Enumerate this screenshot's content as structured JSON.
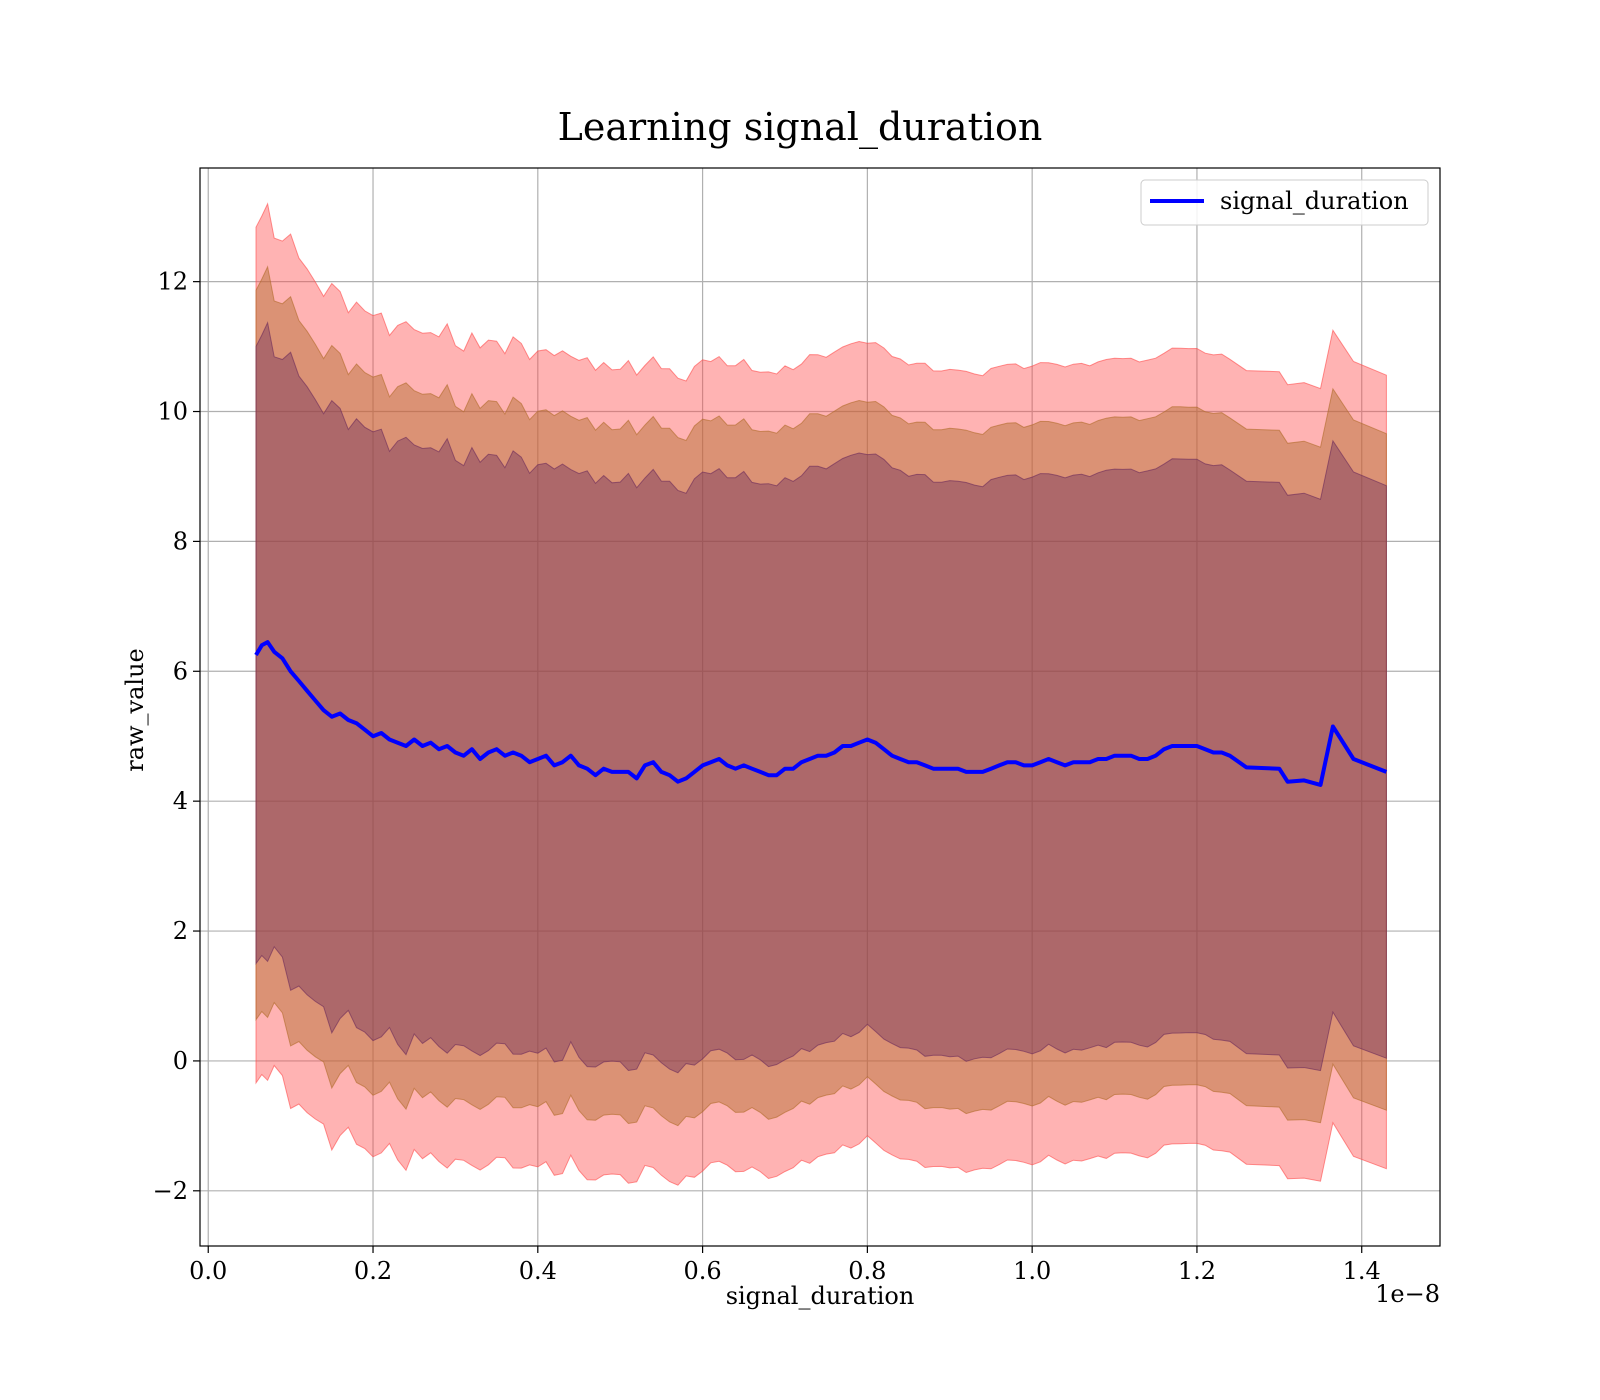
{
  "chart_data": {
    "type": "area",
    "title": "Learning signal_duration",
    "xlabel": "signal_duration",
    "ylabel": "raw_value",
    "x_offset_label": "1e−8",
    "xlim": [
      -0.01,
      1.495
    ],
    "ylim": [
      -2.85,
      13.75
    ],
    "x_ticks": [
      0.0,
      0.2,
      0.4,
      0.6,
      0.8,
      1.0,
      1.2,
      1.4
    ],
    "x_tick_labels": [
      "0.0",
      "0.2",
      "0.4",
      "0.6",
      "0.8",
      "1.0",
      "1.2",
      "1.4"
    ],
    "y_ticks": [
      -2,
      0,
      2,
      4,
      6,
      8,
      10,
      12
    ],
    "y_tick_labels": [
      "−2",
      "0",
      "2",
      "4",
      "6",
      "8",
      "10",
      "12"
    ],
    "grid": true,
    "legend_position": "top-right",
    "series": [
      {
        "name": "signal_duration",
        "color": "#0000ff",
        "x": [
          0.058,
          0.065,
          0.072,
          0.08,
          0.09,
          0.1,
          0.11,
          0.12,
          0.13,
          0.14,
          0.15,
          0.16,
          0.17,
          0.18,
          0.19,
          0.2,
          0.21,
          0.22,
          0.23,
          0.24,
          0.25,
          0.26,
          0.27,
          0.28,
          0.29,
          0.3,
          0.31,
          0.32,
          0.33,
          0.34,
          0.35,
          0.36,
          0.37,
          0.38,
          0.39,
          0.4,
          0.41,
          0.42,
          0.43,
          0.44,
          0.45,
          0.46,
          0.47,
          0.48,
          0.49,
          0.5,
          0.51,
          0.52,
          0.53,
          0.54,
          0.55,
          0.56,
          0.57,
          0.58,
          0.59,
          0.6,
          0.61,
          0.62,
          0.63,
          0.64,
          0.65,
          0.66,
          0.67,
          0.68,
          0.69,
          0.7,
          0.71,
          0.72,
          0.73,
          0.74,
          0.75,
          0.76,
          0.77,
          0.78,
          0.79,
          0.8,
          0.81,
          0.82,
          0.83,
          0.84,
          0.85,
          0.86,
          0.87,
          0.88,
          0.89,
          0.9,
          0.91,
          0.92,
          0.93,
          0.94,
          0.95,
          0.96,
          0.97,
          0.98,
          0.99,
          1.0,
          1.01,
          1.02,
          1.03,
          1.04,
          1.05,
          1.06,
          1.07,
          1.08,
          1.09,
          1.1,
          1.11,
          1.12,
          1.13,
          1.14,
          1.15,
          1.16,
          1.17,
          1.18,
          1.19,
          1.2,
          1.21,
          1.22,
          1.23,
          1.24,
          1.26,
          1.3,
          1.31,
          1.33,
          1.35,
          1.365,
          1.39,
          1.43
        ],
        "y": [
          6.25,
          6.4,
          6.45,
          6.3,
          6.2,
          6.0,
          5.85,
          5.7,
          5.55,
          5.4,
          5.3,
          5.35,
          5.25,
          5.2,
          5.1,
          5.0,
          5.05,
          4.95,
          4.9,
          4.85,
          4.95,
          4.85,
          4.9,
          4.8,
          4.85,
          4.75,
          4.7,
          4.8,
          4.65,
          4.75,
          4.8,
          4.7,
          4.75,
          4.7,
          4.6,
          4.65,
          4.7,
          4.55,
          4.6,
          4.7,
          4.55,
          4.5,
          4.4,
          4.5,
          4.45,
          4.45,
          4.45,
          4.35,
          4.55,
          4.6,
          4.45,
          4.4,
          4.3,
          4.35,
          4.45,
          4.55,
          4.6,
          4.65,
          4.55,
          4.5,
          4.55,
          4.5,
          4.45,
          4.4,
          4.4,
          4.5,
          4.5,
          4.6,
          4.65,
          4.7,
          4.7,
          4.75,
          4.85,
          4.85,
          4.9,
          4.95,
          4.9,
          4.8,
          4.7,
          4.65,
          4.6,
          4.6,
          4.55,
          4.5,
          4.5,
          4.5,
          4.5,
          4.45,
          4.45,
          4.45,
          4.5,
          4.55,
          4.6,
          4.6,
          4.55,
          4.55,
          4.6,
          4.65,
          4.6,
          4.55,
          4.6,
          4.6,
          4.6,
          4.65,
          4.65,
          4.7,
          4.7,
          4.7,
          4.65,
          4.65,
          4.7,
          4.8,
          4.85,
          4.85,
          4.85,
          4.85,
          4.8,
          4.75,
          4.75,
          4.7,
          4.52,
          4.5,
          4.3,
          4.32,
          4.25,
          5.15,
          4.65,
          4.45
        ]
      }
    ]
  }
}
